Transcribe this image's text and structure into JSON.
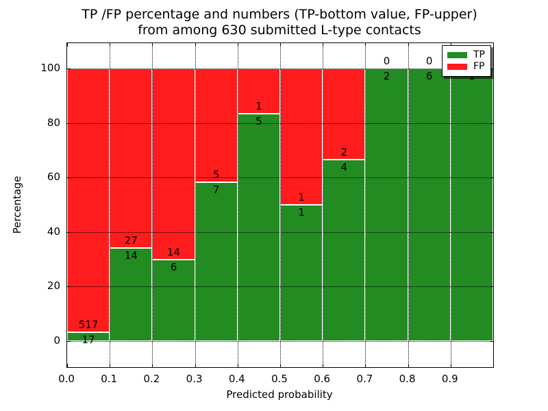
{
  "title": {
    "line1": "TP /FP percentage and numbers (TP-bottom value, FP-upper)",
    "line2": "from among 630 submitted L-type contacts"
  },
  "axes": {
    "xlabel": "Predicted probability",
    "ylabel": "Percentage",
    "xtick_labels": [
      "0.0",
      "0.1",
      "0.2",
      "0.3",
      "0.4",
      "0.5",
      "0.6",
      "0.7",
      "0.8",
      "0.9"
    ],
    "ytick_labels": [
      "0",
      "20",
      "40",
      "60",
      "80",
      "100"
    ],
    "ytick_values": [
      0,
      20,
      40,
      60,
      80,
      100
    ]
  },
  "legend": {
    "entries": [
      {
        "label": "TP",
        "color": "#228b22"
      },
      {
        "label": "FP",
        "color": "#ff1c1c"
      }
    ],
    "position": "upper right",
    "shadow": true
  },
  "colors": {
    "tp": "#228b22",
    "fp": "#ff1c1c",
    "grid": "#000000",
    "bar_edge": "#ffffff",
    "text": "#000000"
  },
  "chart_data": {
    "type": "bar",
    "stacked": true,
    "normalized_to_percent": true,
    "title": "TP /FP percentage and numbers (TP-bottom value, FP-upper) from among 630 submitted L-type contacts",
    "xlabel": "Predicted probability",
    "ylabel": "Percentage",
    "bin_starts": [
      0.0,
      0.1,
      0.2,
      0.3,
      0.4,
      0.5,
      0.6,
      0.7,
      0.8,
      0.9
    ],
    "bin_width": 0.1,
    "series": [
      {
        "name": "TP",
        "color": "#228b22",
        "values": [
          17,
          14,
          6,
          7,
          5,
          1,
          4,
          2,
          6,
          1
        ]
      },
      {
        "name": "FP",
        "color": "#ff1c1c",
        "values": [
          517,
          27,
          14,
          5,
          1,
          1,
          2,
          0,
          0,
          0
        ]
      }
    ],
    "tp_percent": [
      3.18,
      34.15,
      30.0,
      58.33,
      83.33,
      50.0,
      66.67,
      100.0,
      100.0,
      100.0
    ],
    "total_contacts": 630,
    "xlim": [
      0.0,
      1.0
    ],
    "ylim": [
      -9.5,
      109.5
    ],
    "grid": "dotted",
    "legend_position": "upper right"
  }
}
